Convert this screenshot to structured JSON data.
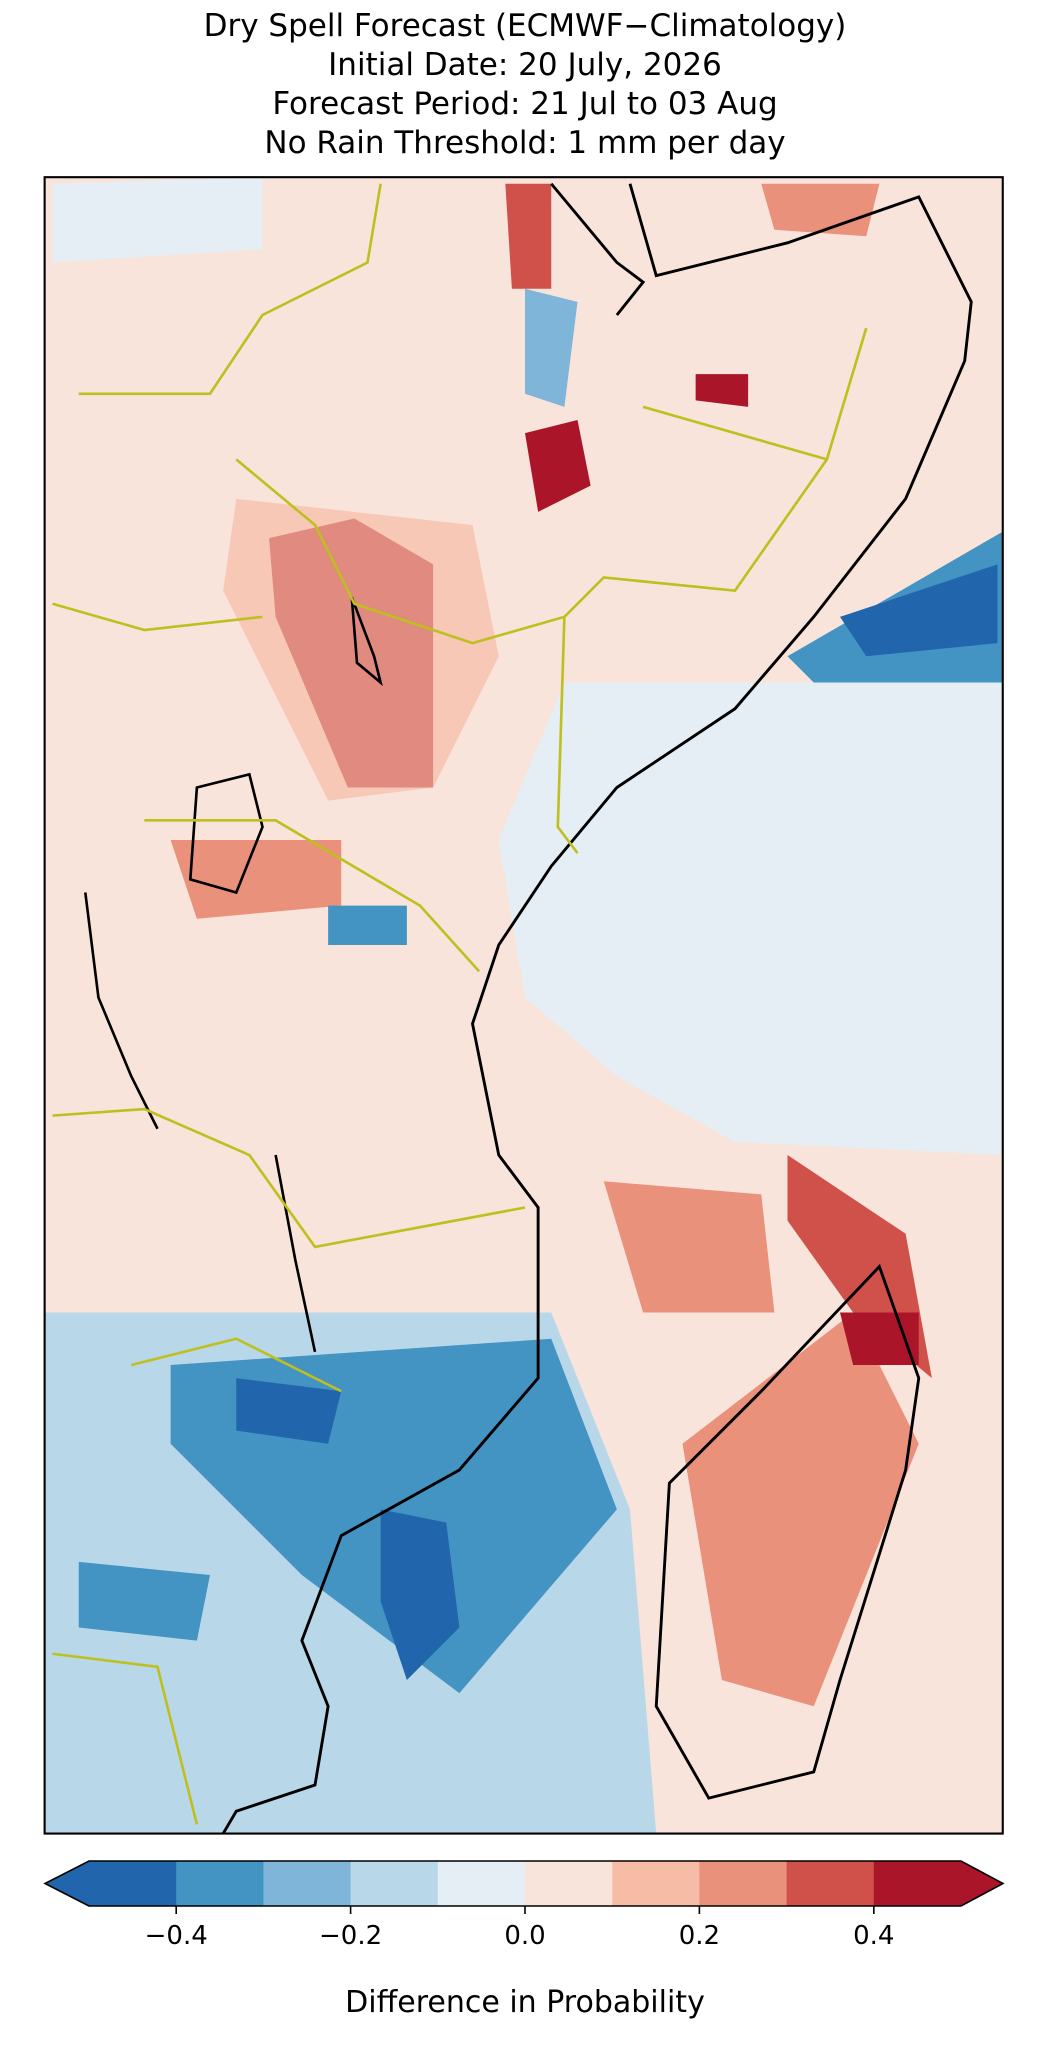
{
  "title_lines": [
    "Dry Spell Forecast (ECMWF−Climatology)",
    "Initial Date: 20 July, 2026",
    "Forecast Period: 21 Jul to 03 Aug",
    "No Rain Threshold: 1 mm per day"
  ],
  "colorbar": {
    "boundaries": [
      -0.5,
      -0.4,
      -0.3,
      -0.2,
      -0.1,
      0,
      0.1,
      0.2,
      0.3,
      0.4,
      0.5
    ],
    "colors": [
      "#2166ac",
      "#4393c3",
      "#7fb5d9",
      "#b8d8ea",
      "#e5eef4",
      "#f9e4dc",
      "#f7bca5",
      "#e9917a",
      "#cf5149",
      "#ab1529"
    ],
    "extend": "both",
    "ticks": [
      {
        "value": -0.4,
        "label": "−0.4"
      },
      {
        "value": -0.2,
        "label": "−0.2"
      },
      {
        "value": 0,
        "label": "0.0"
      },
      0.2,
      0.4
    ],
    "label": "Difference in Probability"
  }
}
